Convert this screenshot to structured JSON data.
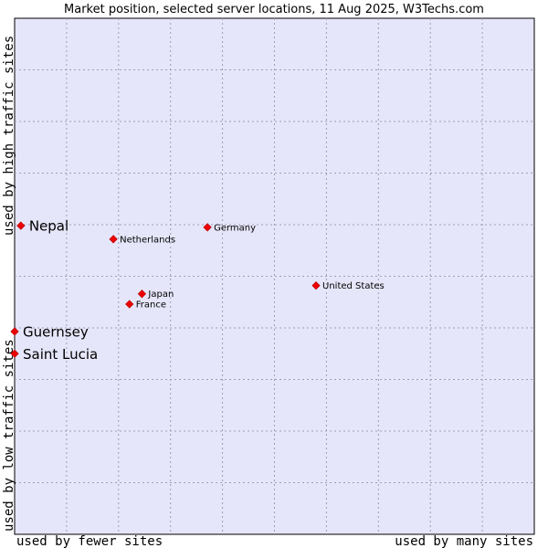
{
  "chart_data": {
    "type": "scatter",
    "title": "Market position, selected server locations, 11 Aug 2025, W3Techs.com",
    "xlabel_left": "used by fewer sites",
    "xlabel_right": "used by many sites",
    "ylabel_bottom": "used by low traffic sites",
    "ylabel_top": "used by high traffic sites",
    "xlim": [
      0,
      100
    ],
    "ylim": [
      0,
      100
    ],
    "grid": true,
    "colors": {
      "plot_background": "#e6e6fa",
      "marker": "#ee0000",
      "grid": "#9aa0b4"
    },
    "points": [
      {
        "label": "Nepal",
        "x": 1.2,
        "y": 59.8,
        "emphasized": true
      },
      {
        "label": "Guernsey",
        "x": 0,
        "y": 39.3,
        "emphasized": true
      },
      {
        "label": "Saint Lucia",
        "x": 0,
        "y": 35.0,
        "emphasized": true
      },
      {
        "label": "Netherlands",
        "x": 19.0,
        "y": 57.2,
        "emphasized": false
      },
      {
        "label": "Germany",
        "x": 37.1,
        "y": 59.5,
        "emphasized": false
      },
      {
        "label": "Japan",
        "x": 24.5,
        "y": 46.6,
        "emphasized": false
      },
      {
        "label": "France",
        "x": 22.1,
        "y": 44.6,
        "emphasized": false
      },
      {
        "label": "United States",
        "x": 58.0,
        "y": 48.2,
        "emphasized": false
      }
    ]
  }
}
